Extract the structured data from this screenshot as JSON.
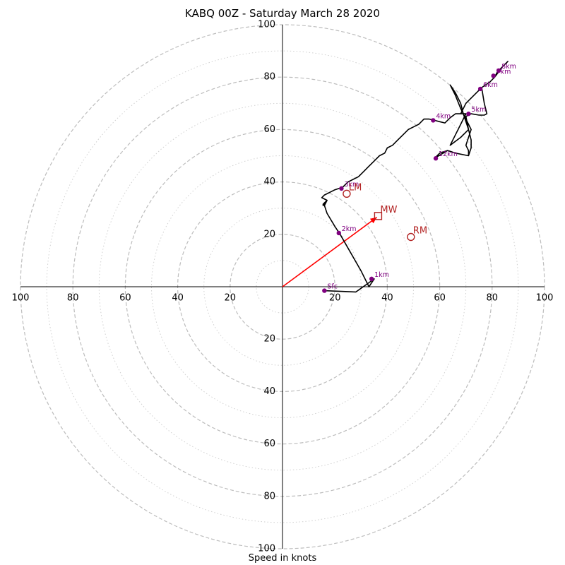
{
  "chart_data": {
    "type": "hodograph",
    "title": "KABQ 00Z - Saturday March 28 2020",
    "xlabel": "Speed in knots",
    "units": "knots",
    "range": [
      -100,
      100
    ],
    "axis_ticks": [
      20,
      40,
      60,
      80,
      100
    ],
    "rings_dashed": [
      20,
      40,
      60,
      80,
      100
    ],
    "rings_dotted": [
      10,
      30,
      50,
      70,
      90
    ],
    "colors": {
      "trace": "#000000",
      "heights": "#800080",
      "motion": "#b22222",
      "shear_vector": "#ff0000",
      "grid": "#bdbdbd"
    },
    "trace": [
      [
        16,
        -1.5
      ],
      [
        28,
        -2
      ],
      [
        35,
        3
      ],
      [
        33,
        0
      ],
      [
        30,
        6
      ],
      [
        26,
        13
      ],
      [
        22,
        20
      ],
      [
        20,
        23
      ],
      [
        17,
        28
      ],
      [
        16,
        31
      ],
      [
        17,
        33
      ],
      [
        15.5,
        31.5
      ],
      [
        15.5,
        31
      ],
      [
        17,
        33
      ],
      [
        15,
        34
      ],
      [
        16,
        35
      ],
      [
        20,
        37
      ],
      [
        23,
        38
      ],
      [
        25,
        40
      ],
      [
        27,
        41
      ],
      [
        29,
        42
      ],
      [
        31,
        44
      ],
      [
        33,
        46
      ],
      [
        35,
        48
      ],
      [
        37,
        50
      ],
      [
        39,
        51
      ],
      [
        40,
        53
      ],
      [
        42,
        54
      ],
      [
        44,
        56
      ],
      [
        46,
        58
      ],
      [
        48,
        60
      ],
      [
        50,
        61
      ],
      [
        52,
        62
      ],
      [
        53,
        63
      ],
      [
        54,
        64
      ],
      [
        56,
        64
      ],
      [
        58,
        63.5
      ],
      [
        60,
        63
      ],
      [
        62,
        62.5
      ],
      [
        64,
        64.5
      ],
      [
        66,
        66
      ],
      [
        68,
        66
      ],
      [
        70,
        66
      ],
      [
        68,
        62
      ],
      [
        66,
        58
      ],
      [
        64,
        54
      ],
      [
        68,
        57
      ],
      [
        71,
        60
      ],
      [
        70,
        63
      ],
      [
        69,
        66
      ],
      [
        68,
        70
      ],
      [
        66,
        74
      ],
      [
        64,
        77
      ],
      [
        66,
        73
      ],
      [
        68,
        68
      ],
      [
        70,
        64
      ],
      [
        72,
        60
      ],
      [
        71,
        57
      ],
      [
        70,
        54
      ],
      [
        71,
        52
      ],
      [
        71,
        50
      ],
      [
        66,
        51
      ],
      [
        63,
        52
      ],
      [
        58,
        49
      ],
      [
        60,
        51
      ],
      [
        63,
        52
      ],
      [
        66,
        51
      ],
      [
        71,
        50
      ],
      [
        72,
        53
      ],
      [
        72,
        56
      ],
      [
        71,
        60
      ],
      [
        70,
        65
      ],
      [
        72,
        66
      ],
      [
        75,
        65.5
      ],
      [
        77,
        65.5
      ],
      [
        78,
        66
      ],
      [
        77,
        70
      ],
      [
        76,
        76
      ],
      [
        79,
        78
      ],
      [
        81,
        80
      ],
      [
        82,
        82
      ],
      [
        84,
        84
      ],
      [
        86,
        86
      ],
      [
        84,
        84
      ],
      [
        81,
        80
      ],
      [
        79,
        78
      ],
      [
        76,
        76
      ],
      [
        73,
        73
      ],
      [
        71,
        71
      ],
      [
        70,
        70
      ],
      [
        68,
        66
      ]
    ],
    "height_points": [
      {
        "label": "Sfc",
        "u": 16,
        "v": -1.5
      },
      {
        "label": "1km",
        "u": 34,
        "v": 3
      },
      {
        "label": "2km",
        "u": 21.5,
        "v": 20.5
      },
      {
        "label": "3km",
        "u": 22.5,
        "v": 37.5
      },
      {
        "label": "4km",
        "u": 57.5,
        "v": 63.5
      },
      {
        "label": "5km",
        "u": 71,
        "v": 66
      },
      {
        "label": "6km",
        "u": 75.5,
        "v": 75.5
      },
      {
        "label": "7km",
        "u": 80.5,
        "v": 80.5
      },
      {
        "label": "8km",
        "u": 82.5,
        "v": 82.5
      },
      {
        "label": "12km",
        "u": 58.5,
        "v": 49
      }
    ],
    "storm_motion": [
      {
        "label": "LM",
        "u": 24.5,
        "v": 35.5,
        "marker": "circle"
      },
      {
        "label": "RM",
        "u": 49,
        "v": 19,
        "marker": "circle"
      },
      {
        "label": "MW",
        "u": 36.5,
        "v": 27,
        "marker": "square"
      }
    ],
    "shear_vector": {
      "u": 36,
      "v": 26.5
    }
  }
}
